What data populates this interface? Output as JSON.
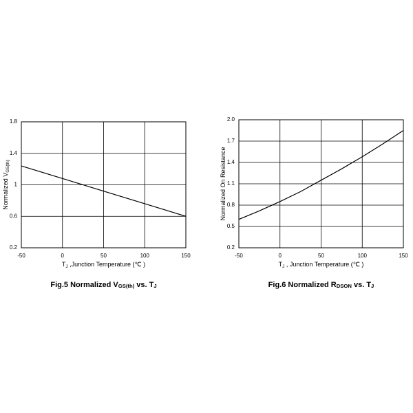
{
  "chart_data": [
    {
      "type": "line",
      "x_label": [
        {
          "text": "T"
        },
        {
          "text": "J",
          "sub": true
        },
        {
          "text": " ,Junction Temperature (℃ )"
        }
      ],
      "y_label": [
        {
          "text": "Normalized V"
        },
        {
          "text": "GS(th)",
          "sub": true
        }
      ],
      "caption": [
        {
          "text": "Fig.5 Normalized V"
        },
        {
          "text": "GS(th)",
          "sub": true
        },
        {
          "text": " vs. T"
        },
        {
          "text": "J",
          "sub": true
        }
      ],
      "x": [
        -50,
        0,
        50,
        100,
        150
      ],
      "values": [
        1.24,
        1.08,
        0.92,
        0.76,
        0.6
      ],
      "color": "#000000",
      "xlim": [
        -50,
        150
      ],
      "xticks": [
        -50,
        0,
        50,
        100,
        150
      ],
      "ylim": [
        0.2,
        1.8
      ],
      "yticks": [
        0.2,
        0.6,
        1,
        1.4,
        1.8
      ],
      "grid": true
    },
    {
      "type": "line",
      "x_label": [
        {
          "text": "T"
        },
        {
          "text": "J",
          "sub": true
        },
        {
          "text": " , Junction Temperature (℃ )"
        }
      ],
      "y_label": [
        {
          "text": "Normalized On Resistance"
        }
      ],
      "caption": [
        {
          "text": "Fig.6 Normalized R"
        },
        {
          "text": "DSON",
          "sub": true
        },
        {
          "text": " vs. T"
        },
        {
          "text": "J",
          "sub": true
        }
      ],
      "x": [
        -50,
        -25,
        0,
        25,
        50,
        75,
        100,
        125,
        150
      ],
      "values": [
        0.6,
        0.72,
        0.85,
        0.99,
        1.15,
        1.31,
        1.48,
        1.66,
        1.85
      ],
      "color": "#000000",
      "xlim": [
        -50,
        150
      ],
      "xticks": [
        -50,
        0,
        50,
        100,
        150
      ],
      "ylim": [
        0.2,
        2
      ],
      "yticks": [
        0.2,
        0.5,
        0.8,
        1.1,
        1.4,
        1.7,
        {
          "value": 2,
          "label": "2.0"
        }
      ],
      "grid": true
    }
  ]
}
